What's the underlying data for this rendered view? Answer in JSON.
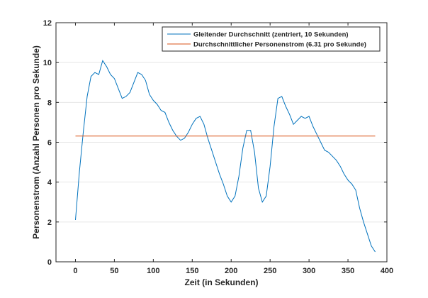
{
  "chart_data": {
    "type": "line",
    "title": "",
    "xlabel": "Zeit (in Sekunden)",
    "ylabel": "Personenstrom (Anzahl Personen pro Sekunde)",
    "xlim": [
      -25,
      400
    ],
    "ylim": [
      0,
      12
    ],
    "xticks": [
      0,
      50,
      100,
      150,
      200,
      250,
      300,
      350,
      400
    ],
    "yticks": [
      0,
      2,
      4,
      6,
      8,
      10,
      12
    ],
    "grid": "horizontal",
    "legend_position": "top-right",
    "series": [
      {
        "name": "Gleitender Durchschnitt (zentriert, 10 Sekunden)",
        "color": "#0072BD",
        "x": [
          0,
          5,
          10,
          15,
          20,
          25,
          30,
          35,
          40,
          45,
          50,
          55,
          60,
          65,
          70,
          75,
          80,
          85,
          90,
          95,
          100,
          105,
          110,
          115,
          120,
          125,
          130,
          135,
          140,
          145,
          150,
          155,
          160,
          165,
          170,
          175,
          180,
          185,
          190,
          195,
          200,
          205,
          210,
          215,
          220,
          225,
          230,
          235,
          240,
          245,
          250,
          255,
          260,
          265,
          270,
          275,
          280,
          285,
          290,
          295,
          300,
          305,
          310,
          315,
          320,
          325,
          330,
          335,
          340,
          345,
          350,
          355,
          360,
          365,
          370,
          375,
          380,
          385
        ],
        "y": [
          2.1,
          4.5,
          6.5,
          8.3,
          9.3,
          9.5,
          9.4,
          10.1,
          9.8,
          9.4,
          9.2,
          8.7,
          8.2,
          8.3,
          8.5,
          9.0,
          9.5,
          9.4,
          9.1,
          8.4,
          8.1,
          7.9,
          7.6,
          7.5,
          7.0,
          6.6,
          6.3,
          6.1,
          6.2,
          6.5,
          6.9,
          7.2,
          7.3,
          6.9,
          6.2,
          5.6,
          5.0,
          4.4,
          3.9,
          3.3,
          3.0,
          3.3,
          4.3,
          5.7,
          6.6,
          6.6,
          5.5,
          3.7,
          3.0,
          3.3,
          4.8,
          6.8,
          8.2,
          8.3,
          7.8,
          7.4,
          6.9,
          7.1,
          7.3,
          7.2,
          7.3,
          6.8,
          6.4,
          6.0,
          5.6,
          5.5,
          5.3,
          5.1,
          4.8,
          4.4,
          4.1,
          3.9,
          3.6,
          2.7,
          2.0,
          1.4,
          0.8,
          0.5
        ]
      },
      {
        "name": "Durchschnittlicher Personenstrom (6.31 pro Sekunde)",
        "color": "#D95319",
        "x": [
          0,
          385
        ],
        "y": [
          6.31,
          6.31
        ]
      }
    ]
  }
}
